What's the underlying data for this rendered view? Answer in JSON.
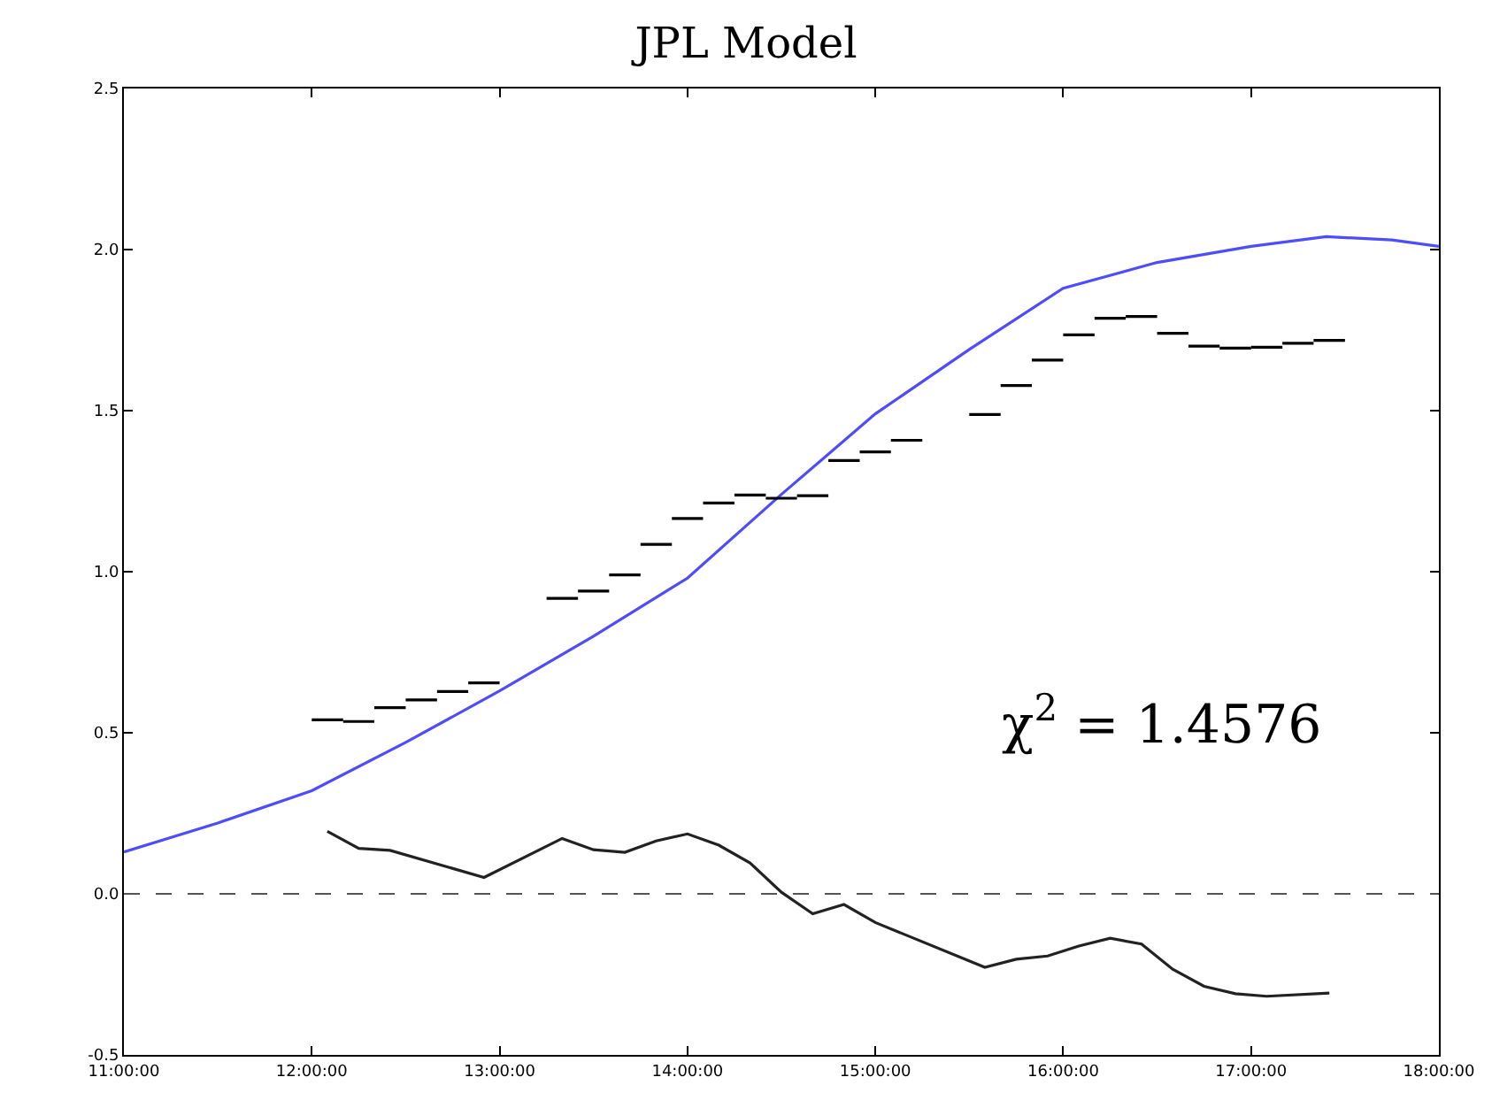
{
  "chart_data": {
    "type": "line",
    "title": "JPL Model",
    "xlim": [
      11,
      18
    ],
    "xticks": [
      {
        "value": 11,
        "label": "11:00:00"
      },
      {
        "value": 12,
        "label": "12:00:00"
      },
      {
        "value": 13,
        "label": "13:00:00"
      },
      {
        "value": 14,
        "label": "14:00:00"
      },
      {
        "value": 15,
        "label": "15:00:00"
      },
      {
        "value": 16,
        "label": "16:00:00"
      },
      {
        "value": 17,
        "label": "17:00:00"
      },
      {
        "value": 18,
        "label": "18:00:00"
      }
    ],
    "ylim": [
      -0.5,
      2.5
    ],
    "yticks": [
      {
        "value": -0.5,
        "label": "-0.5"
      },
      {
        "value": 0,
        "label": "0.0"
      },
      {
        "value": 0.5,
        "label": "0.5"
      },
      {
        "value": 1,
        "label": "1.0"
      },
      {
        "value": 1.5,
        "label": "1.5"
      },
      {
        "value": 2,
        "label": "2.0"
      },
      {
        "value": 2.5,
        "label": "2.5"
      }
    ],
    "grid": false,
    "series": [
      {
        "type": "line",
        "color": "#4d4dff",
        "x": [
          11.0,
          11.5,
          12.0,
          12.5,
          13.0,
          13.5,
          14.0,
          14.5,
          15.0,
          15.5,
          16.0,
          16.5,
          17.0,
          17.4,
          17.75,
          18.0
        ],
        "values": [
          0.13,
          0.22,
          0.32,
          0.47,
          0.63,
          0.8,
          0.98,
          1.24,
          1.49,
          1.69,
          1.88,
          1.96,
          2.01,
          2.04,
          2.03,
          2.01
        ]
      },
      {
        "color": "#000000",
        "x": [
          12.0,
          12.167,
          null,
          12.167,
          12.333,
          null,
          12.333,
          12.5,
          null,
          12.5,
          12.667,
          null,
          12.667,
          12.833,
          null,
          12.833,
          13.0,
          null,
          13.25,
          13.417,
          null,
          13.417,
          13.583,
          null,
          13.583,
          13.75,
          null,
          13.75,
          13.917,
          null,
          13.917,
          14.083,
          null,
          14.083,
          14.25,
          null,
          14.25,
          14.417,
          null,
          14.417,
          14.583,
          null,
          14.583,
          14.75,
          null,
          14.75,
          14.917,
          null,
          14.917,
          15.083,
          null,
          15.083,
          15.25,
          null,
          15.5,
          15.667,
          null,
          15.667,
          15.833,
          null,
          15.833,
          16.0,
          null,
          16.0,
          16.167,
          null,
          16.167,
          16.333,
          null,
          16.333,
          16.5,
          null,
          16.5,
          16.667,
          null,
          16.667,
          16.833,
          null,
          16.833,
          17.0,
          null,
          17.0,
          17.167,
          null,
          17.167,
          17.333,
          null,
          17.333,
          17.5
        ],
        "values": [
          0.54,
          0.54,
          null,
          0.535,
          0.535,
          null,
          0.578,
          0.578,
          null,
          0.602,
          0.602,
          null,
          0.628,
          0.628,
          null,
          0.655,
          0.655,
          null,
          0.917,
          0.917,
          null,
          0.94,
          0.94,
          null,
          0.99,
          0.99,
          null,
          1.085,
          1.085,
          null,
          1.165,
          1.165,
          null,
          1.213,
          1.213,
          null,
          1.238,
          1.238,
          null,
          1.228,
          1.228,
          null,
          1.236,
          1.236,
          null,
          1.345,
          1.345,
          null,
          1.372,
          1.372,
          null,
          1.408,
          1.408,
          null,
          1.488,
          1.488,
          null,
          1.578,
          1.578,
          null,
          1.657,
          1.657,
          null,
          1.735,
          1.735,
          null,
          1.787,
          1.787,
          null,
          1.792,
          1.792,
          null,
          1.74,
          1.74,
          null,
          1.7,
          1.7,
          null,
          1.694,
          1.694,
          null,
          1.697,
          1.697,
          null,
          1.709,
          1.709,
          null,
          1.718,
          1.718
        ]
      },
      {
        "type": "line",
        "color": "#222222",
        "x": [
          12.083,
          12.25,
          12.417,
          12.917,
          13.333,
          13.5,
          13.667,
          13.833,
          14.0,
          14.167,
          14.333,
          14.5,
          14.667,
          14.833,
          15.0,
          15.583,
          15.75,
          15.917,
          16.083,
          16.25,
          16.417,
          16.583,
          16.75,
          16.917,
          17.083,
          17.417
        ],
        "values": [
          0.194,
          0.141,
          0.135,
          0.051,
          0.172,
          0.137,
          0.129,
          0.164,
          0.186,
          0.151,
          0.096,
          0.005,
          -0.062,
          -0.033,
          -0.089,
          -0.228,
          -0.203,
          -0.193,
          -0.162,
          -0.138,
          -0.156,
          -0.234,
          -0.287,
          -0.31,
          -0.318,
          -0.308
        ]
      }
    ],
    "ref_lines": [
      {
        "axis": "y",
        "value": 0,
        "color": "#555555",
        "line_style": "dashed"
      }
    ],
    "annotations": [
      "χ$^{2}$ = 1.4576"
    ]
  }
}
